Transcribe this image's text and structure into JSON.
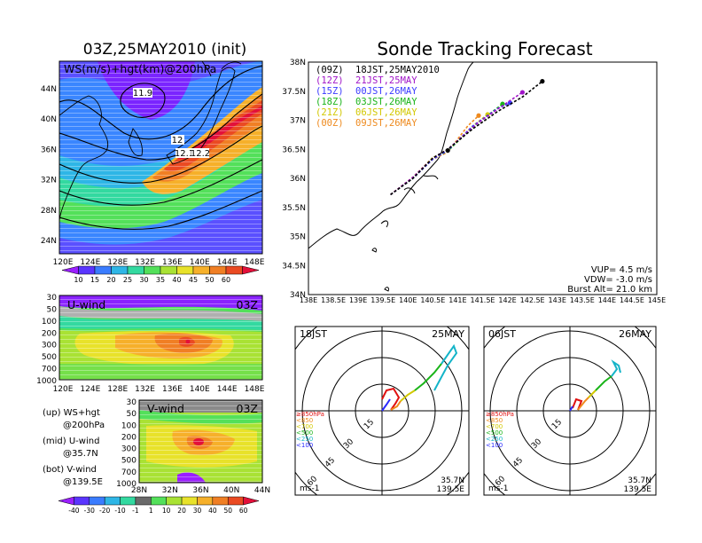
{
  "left": {
    "title": "03Z,25MAY2010 (init)",
    "map": {
      "label": "WS(m/s)+hgt(km)@200hPa",
      "lat_ticks": [
        "44N",
        "40N",
        "36N",
        "32N",
        "28N",
        "24N"
      ],
      "lon_ticks": [
        "120E",
        "124E",
        "128E",
        "132E",
        "136E",
        "140E",
        "144E",
        "148E"
      ],
      "contour_labels": [
        "11.9",
        "12",
        "12.1",
        "12.2"
      ],
      "colorbar": [
        "10",
        "15",
        "20",
        "25",
        "30",
        "35",
        "40",
        "45",
        "50",
        "60"
      ],
      "colors": [
        "#9a1fff",
        "#5a35ff",
        "#3a7cff",
        "#2eb6e6",
        "#33d9a0",
        "#53e05a",
        "#a9e234",
        "#e8e22a",
        "#f6b02a",
        "#f07f24",
        "#ea4a22",
        "#e3103a"
      ]
    },
    "uwind": {
      "label": "U-wind",
      "time": "03Z",
      "y_ticks": [
        "30",
        "50",
        "100",
        "200",
        "300",
        "500",
        "700",
        "1000"
      ],
      "x_ticks": [
        "120E",
        "124E",
        "128E",
        "132E",
        "136E",
        "140E",
        "144E",
        "148E"
      ]
    },
    "vwind": {
      "label": "V-wind",
      "time": "03Z",
      "y_ticks": [
        "30",
        "50",
        "100",
        "200",
        "300",
        "500",
        "700",
        "1000"
      ],
      "x_ticks": [
        "28N",
        "32N",
        "36N",
        "40N",
        "44N"
      ]
    },
    "notes": [
      {
        "a": "(up) WS+hgt",
        "b": "@200hPa"
      },
      {
        "a": "(mid) U-wind",
        "b": "@35.7N"
      },
      {
        "a": "(bot) V-wind",
        "b": "@139.5E"
      }
    ],
    "colorbar2": [
      "-40",
      "-30",
      "-20",
      "-10",
      "-1",
      "1",
      "10",
      "20",
      "30",
      "40",
      "50",
      "60"
    ],
    "colors2": [
      "#9a1fff",
      "#5a35ff",
      "#3a7cff",
      "#2eb6e6",
      "#33d9a0",
      "#6a6a6a",
      "#53e05a",
      "#a9e234",
      "#e8e22a",
      "#f6b02a",
      "#f07f24",
      "#ea4a22",
      "#e3103a"
    ]
  },
  "right": {
    "title": "Sonde Tracking Forecast",
    "lat_ticks": [
      "38N",
      "37.5N",
      "37N",
      "36.5N",
      "36N",
      "35.5N",
      "35N",
      "34.5N",
      "34N"
    ],
    "lon_ticks": [
      "138E",
      "138.5E",
      "139E",
      "139.5E",
      "140E",
      "140.5E",
      "141E",
      "141.5E",
      "142E",
      "142.5E",
      "143E",
      "143.5E",
      "144E",
      "144.5E",
      "145E"
    ],
    "legend": [
      {
        "code": "(09Z)",
        "text": "18JST,25MAY2010",
        "color": "#000000"
      },
      {
        "code": "(12Z)",
        "text": "21JST,25MAY",
        "color": "#a014c8"
      },
      {
        "code": "(15Z)",
        "text": "00JST,26MAY",
        "color": "#3a3aff"
      },
      {
        "code": "(18Z)",
        "text": "03JST,26MAY",
        "color": "#19b419"
      },
      {
        "code": "(21Z)",
        "text": "06JST,26MAY",
        "color": "#d2c800"
      },
      {
        "code": "(00Z)",
        "text": "09JST,26MAY",
        "color": "#ee8a1e"
      }
    ],
    "params": [
      "VUP= 4.5 m/s",
      "VDW= -3.0 m/s",
      "Burst Alt= 21.0 km"
    ]
  },
  "hodo1": {
    "left": "18JST",
    "right": "25MAY",
    "rings": [
      "15",
      "30",
      "45",
      "60"
    ],
    "unit": "ms-1",
    "lat": "35.7N",
    "lon": "139.5E"
  },
  "hodo2": {
    "left": "06JST",
    "right": "26MAY",
    "rings": [
      "15",
      "30",
      "45",
      "60"
    ],
    "unit": "ms-1",
    "lat": "35.7N",
    "lon": "139.5E"
  },
  "hodo_legend": [
    {
      "label": "≥850hPa",
      "color": "#e01010"
    },
    {
      "label": "<850",
      "color": "#f08a1e"
    },
    {
      "label": "<700",
      "color": "#d2c800"
    },
    {
      "label": "<500",
      "color": "#19b419"
    },
    {
      "label": "<250",
      "color": "#14b4c8"
    },
    {
      "label": "<100",
      "color": "#2a2aff"
    }
  ],
  "chart_data": [
    {
      "type": "line",
      "title": "Sonde Tracking Forecast",
      "xlabel": "",
      "ylabel": "",
      "xlim": [
        138,
        145
      ],
      "ylim": [
        34,
        38
      ],
      "series": [
        {
          "name": "(09Z) 18JST,25MAY2010",
          "x": [
            139.65,
            140.1,
            140.5,
            140.8,
            141.3,
            141.8,
            142.3,
            142.7
          ],
          "y": [
            35.72,
            36.0,
            36.35,
            36.5,
            36.85,
            37.15,
            37.4,
            37.67
          ]
        },
        {
          "name": "(12Z) 21JST,25MAY",
          "x": [
            139.65,
            140.1,
            140.5,
            140.8,
            141.4,
            141.9,
            142.3
          ],
          "y": [
            35.72,
            36.02,
            36.35,
            36.5,
            36.95,
            37.25,
            37.48
          ]
        },
        {
          "name": "(15Z) 00JST,26MAY",
          "x": [
            139.65,
            140.1,
            140.5,
            140.8,
            141.3,
            141.8,
            142.05
          ],
          "y": [
            35.72,
            36.0,
            36.33,
            36.48,
            36.9,
            37.2,
            37.3
          ]
        },
        {
          "name": "(18Z) 03JST,26MAY",
          "x": [
            139.65,
            140.1,
            140.5,
            140.8,
            141.3,
            141.7,
            141.9
          ],
          "y": [
            35.72,
            36.0,
            36.34,
            36.47,
            36.88,
            37.15,
            37.28
          ]
        },
        {
          "name": "(21Z) 06JST,26MAY",
          "x": [
            139.65,
            140.1,
            140.5,
            140.8,
            141.3,
            141.6
          ],
          "y": [
            35.72,
            36.02,
            36.36,
            36.47,
            36.9,
            37.1
          ]
        },
        {
          "name": "(00Z) 09JST,26MAY",
          "x": [
            139.65,
            140.1,
            140.5,
            140.8,
            141.2,
            141.42
          ],
          "y": [
            35.72,
            36.0,
            36.33,
            36.45,
            36.9,
            37.08
          ]
        }
      ]
    }
  ]
}
